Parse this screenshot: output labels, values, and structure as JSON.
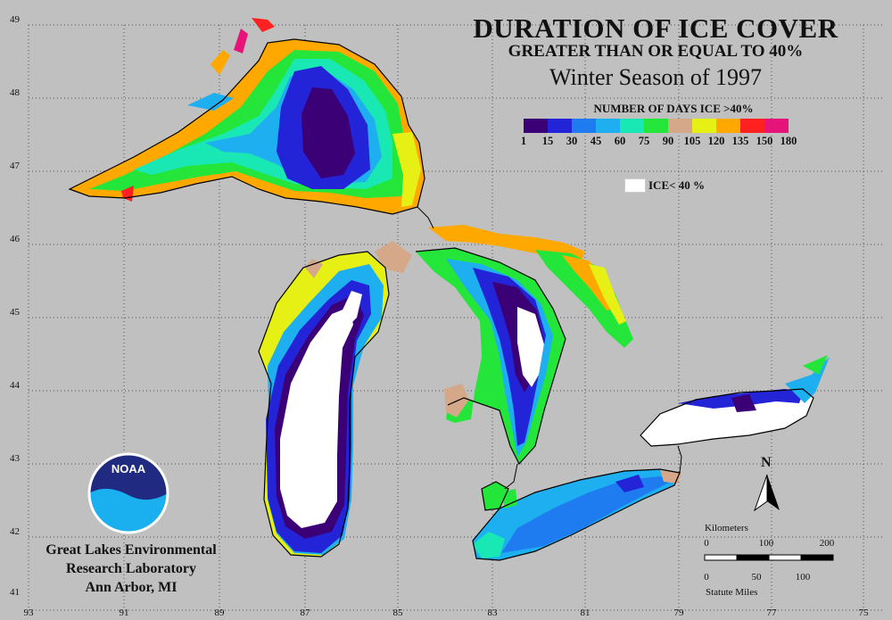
{
  "title": {
    "line1": "DURATION OF ICE COVER",
    "line2": "GREATER THAN OR EQUAL TO 40%",
    "line3": "Winter Season of 1997"
  },
  "legend": {
    "title": "NUMBER OF DAYS ICE >40%",
    "ticks": [
      "1",
      "15",
      "30",
      "45",
      "60",
      "75",
      "90",
      "105",
      "120",
      "135",
      "150",
      "180"
    ],
    "colors": [
      "#3b0075",
      "#2323d8",
      "#1e7cf0",
      "#1eaff0",
      "#1ae8b4",
      "#24e63a",
      "#d4a888",
      "#e6f014",
      "#ffa800",
      "#ff2020",
      "#e6147a"
    ],
    "ice_label": "ICE< 40 %",
    "ice_color": "#ffffff"
  },
  "axes": {
    "longitude_labels": [
      "93",
      "91",
      "89",
      "87",
      "85",
      "83",
      "81",
      "79",
      "77",
      "75"
    ],
    "latitude_labels": [
      "49",
      "48",
      "47",
      "46",
      "45",
      "44",
      "43",
      "42",
      "41"
    ]
  },
  "institution": {
    "line1": "Great Lakes Environmental",
    "line2": "Research Laboratory",
    "line3": "Ann Arbor, MI",
    "logo_text": "NOAA"
  },
  "north_arrow": {
    "label": "N"
  },
  "scale_bar": {
    "km_title": "Kilometers",
    "km_ticks": [
      "0",
      "100",
      "200"
    ],
    "mi_ticks": [
      "0",
      "50",
      "100"
    ],
    "mi_title": "Statute Miles"
  },
  "map_colors": {
    "background": "#c0c0c0",
    "grid": "#505050",
    "shore": "#000000"
  }
}
